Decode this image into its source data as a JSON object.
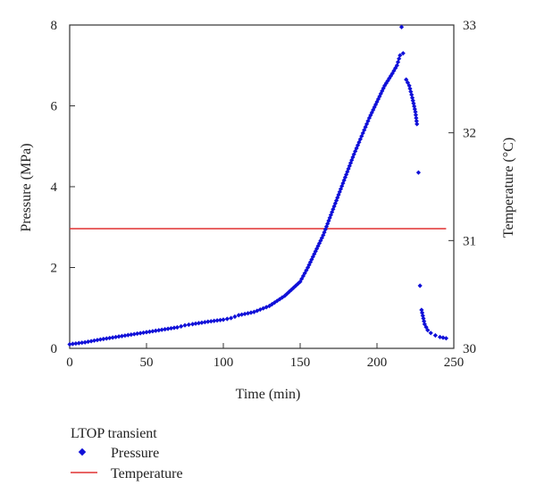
{
  "chart_data": {
    "type": "scatter",
    "xlabel": "Time (min)",
    "ylabel": "Pressure (MPa)",
    "y2label": "Temperature (°C)",
    "xlim": [
      0,
      250
    ],
    "ylim": [
      0,
      8
    ],
    "y2lim": [
      30,
      33
    ],
    "xticks": [
      "0",
      "50",
      "100",
      "150",
      "200",
      "250"
    ],
    "yticks": [
      "0",
      "2",
      "4",
      "6",
      "8"
    ],
    "y2ticks": [
      "30",
      "31",
      "32",
      "33"
    ],
    "grid": false,
    "legend": {
      "title": "LTOP transient",
      "placement": "below-left",
      "entries": [
        "Pressure",
        "Temperature"
      ]
    },
    "series": [
      {
        "name": "Pressure",
        "type": "scatter",
        "axis": "left",
        "color": "#1010d8",
        "points": [
          [
            0,
            0.1
          ],
          [
            10,
            0.15
          ],
          [
            20,
            0.22
          ],
          [
            30,
            0.28
          ],
          [
            40,
            0.34
          ],
          [
            50,
            0.4
          ],
          [
            60,
            0.46
          ],
          [
            70,
            0.52
          ],
          [
            75,
            0.57
          ],
          [
            80,
            0.6
          ],
          [
            90,
            0.66
          ],
          [
            100,
            0.71
          ],
          [
            105,
            0.75
          ],
          [
            110,
            0.82
          ],
          [
            120,
            0.9
          ],
          [
            130,
            1.05
          ],
          [
            140,
            1.3
          ],
          [
            150,
            1.65
          ],
          [
            155,
            2.0
          ],
          [
            160,
            2.4
          ],
          [
            165,
            2.8
          ],
          [
            170,
            3.3
          ],
          [
            175,
            3.8
          ],
          [
            180,
            4.3
          ],
          [
            185,
            4.8
          ],
          [
            190,
            5.25
          ],
          [
            195,
            5.7
          ],
          [
            200,
            6.1
          ],
          [
            205,
            6.5
          ],
          [
            210,
            6.8
          ],
          [
            213,
            7.0
          ],
          [
            215,
            7.25
          ],
          [
            216,
            7.95
          ],
          [
            217,
            7.3
          ],
          [
            219,
            6.65
          ],
          [
            221,
            6.5
          ],
          [
            223,
            6.2
          ],
          [
            225,
            5.85
          ],
          [
            226,
            5.55
          ],
          [
            227,
            4.35
          ],
          [
            228,
            1.55
          ],
          [
            229,
            0.95
          ],
          [
            231,
            0.6
          ],
          [
            233,
            0.45
          ],
          [
            235,
            0.38
          ],
          [
            238,
            0.32
          ],
          [
            241,
            0.28
          ],
          [
            245,
            0.25
          ]
        ]
      },
      {
        "name": "Temperature",
        "type": "line",
        "axis": "right",
        "color": "#e03030",
        "points": [
          [
            0,
            31.11
          ],
          [
            245,
            31.11
          ]
        ]
      }
    ]
  }
}
